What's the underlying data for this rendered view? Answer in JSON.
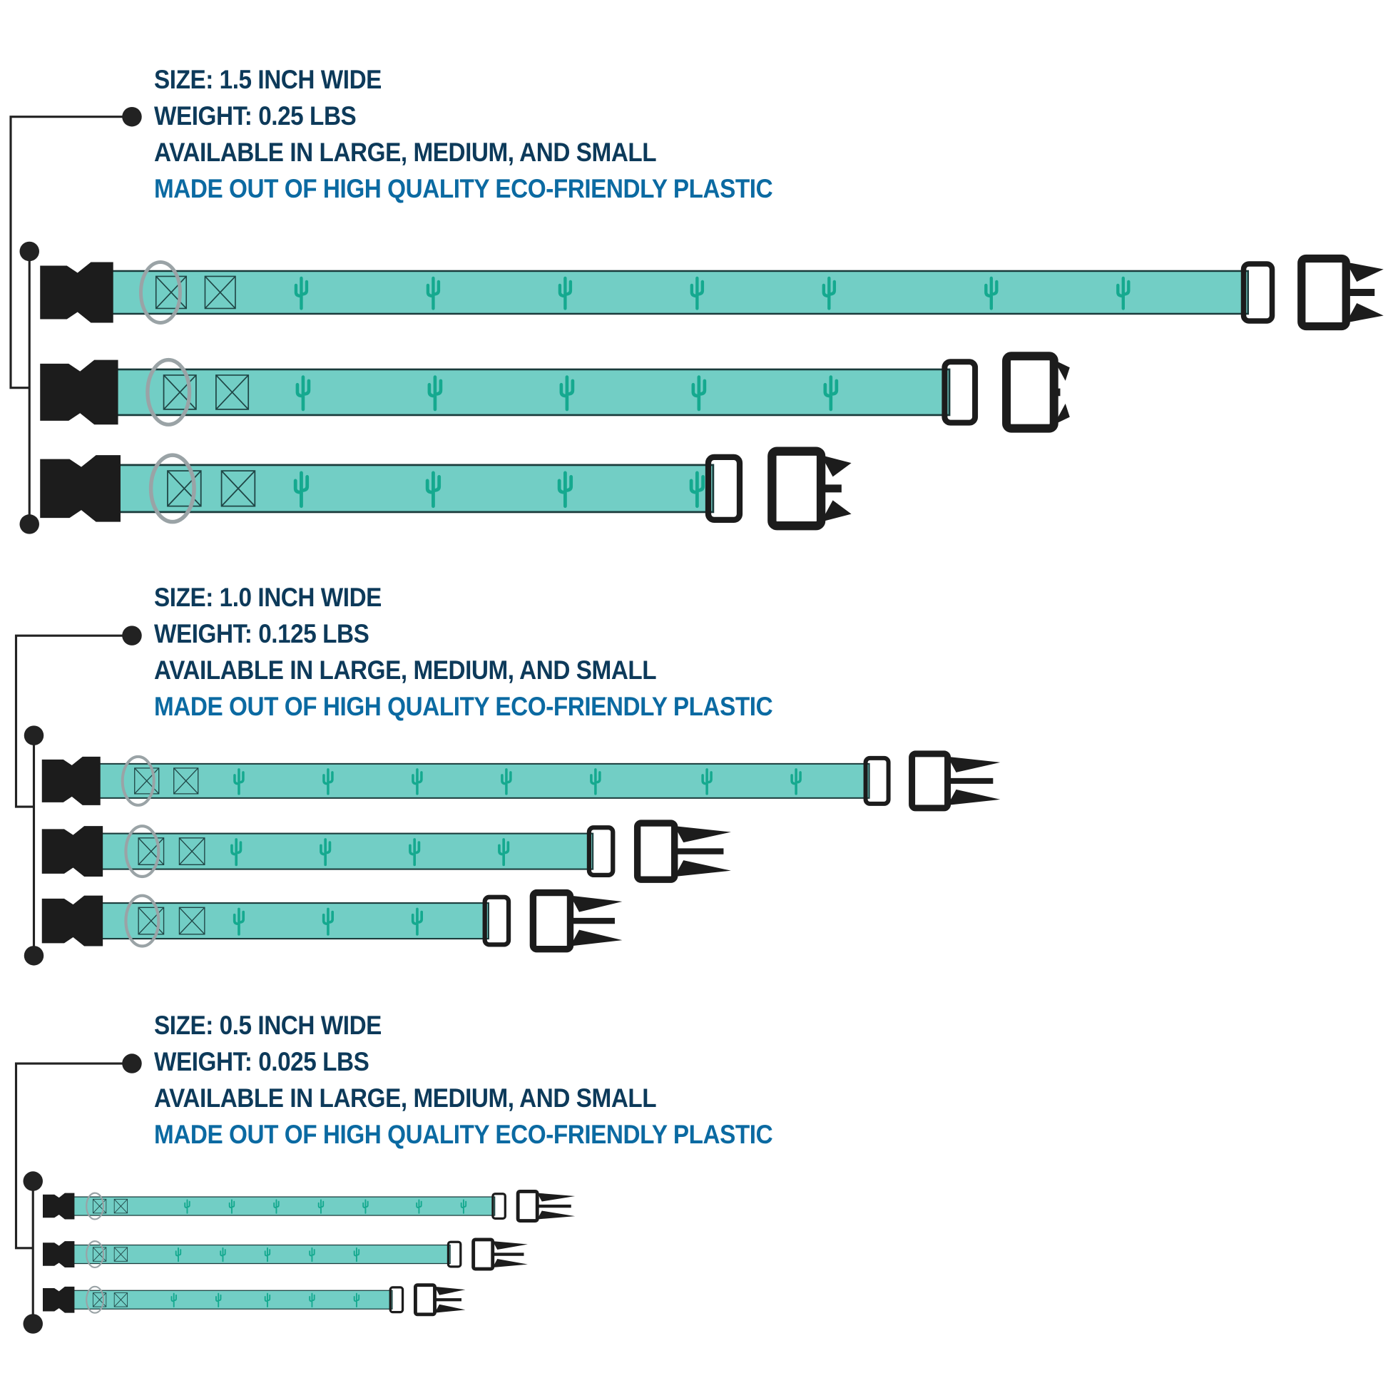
{
  "colors": {
    "heading": "#0d3a5a",
    "highlight": "#0b6aa2",
    "strap": "#72cec5",
    "cactus": "#15a98f",
    "buckle": "#1c1c1c",
    "connector": "#222222"
  },
  "groups": [
    {
      "size": "SIZE: 1.5 INCH WIDE",
      "weight": "WEIGHT: 0.25 LBS",
      "availability": "AVAILABLE IN LARGE, MEDIUM, AND SMALL",
      "material": "MADE OUT OF HIGH QUALITY ECO-FRIENDLY PLASTIC",
      "collars": [
        "large",
        "medium",
        "small"
      ]
    },
    {
      "size": "SIZE: 1.0 INCH WIDE",
      "weight": "WEIGHT: 0.125 LBS",
      "availability": "AVAILABLE IN LARGE, MEDIUM, AND SMALL",
      "material": "MADE OUT OF HIGH QUALITY ECO-FRIENDLY PLASTIC",
      "collars": [
        "large",
        "medium",
        "small"
      ]
    },
    {
      "size": "SIZE: 0.5 INCH WIDE",
      "weight": "WEIGHT: 0.025 LBS",
      "availability": "AVAILABLE IN LARGE, MEDIUM, AND SMALL",
      "material": "MADE OUT OF HIGH QUALITY ECO-FRIENDLY PLASTIC",
      "collars": [
        "large",
        "medium",
        "small"
      ]
    }
  ]
}
